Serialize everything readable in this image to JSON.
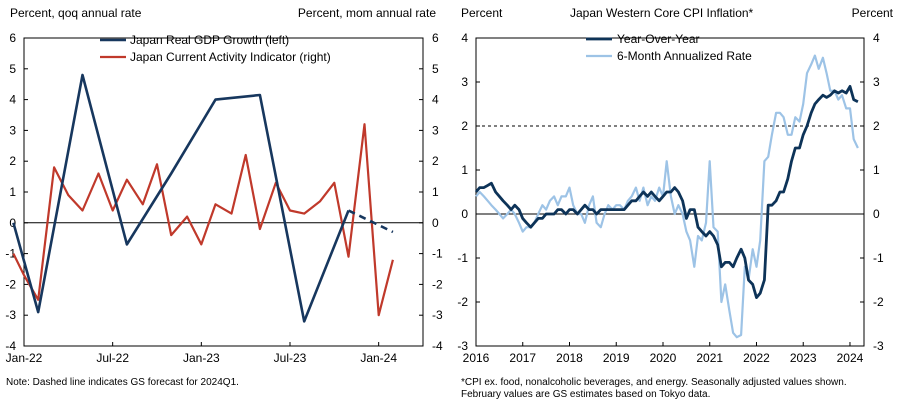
{
  "chart_data": [
    {
      "type": "line",
      "title": "",
      "ylabel_left": "Percent, qoq annual rate",
      "ylabel_right": "Percent, mom annual rate",
      "ylim": [
        -4,
        6
      ],
      "yticks": [
        -4,
        -3,
        -2,
        -1,
        0,
        1,
        2,
        3,
        4,
        5,
        6
      ],
      "xlim": [
        2022.0,
        2024.25
      ],
      "xtick_labels": [
        {
          "label": "Jan-22",
          "x": 2022.0
        },
        {
          "label": "Jul-22",
          "x": 2022.5
        },
        {
          "label": "Jan-23",
          "x": 2023.0
        },
        {
          "label": "Jul-23",
          "x": 2023.5
        },
        {
          "label": "Jan-24",
          "x": 2024.0
        }
      ],
      "note": "Note: Dashed line indicates GS forecast for 2024Q1.",
      "series": [
        {
          "name": "Japan Real GDP Growth (left)",
          "color": "#17375e",
          "points": [
            [
              2021.92,
              0.0
            ],
            [
              2022.08,
              -2.9
            ],
            [
              2022.33,
              4.8
            ],
            [
              2022.58,
              -0.7
            ],
            [
              2022.83,
              1.6
            ],
            [
              2023.08,
              4.0
            ],
            [
              2023.33,
              4.15
            ],
            [
              2023.58,
              -3.2
            ],
            [
              2023.83,
              0.4
            ]
          ],
          "forecast": [
            [
              2023.83,
              0.4
            ],
            [
              2024.08,
              -0.3
            ]
          ]
        },
        {
          "name": "Japan Current Activity Indicator (right)",
          "color": "#c0392b",
          "points": [
            [
              2021.92,
              -1.0
            ],
            [
              2022.0,
              -1.7
            ],
            [
              2022.08,
              -2.5
            ],
            [
              2022.17,
              1.8
            ],
            [
              2022.25,
              0.9
            ],
            [
              2022.33,
              0.4
            ],
            [
              2022.42,
              1.6
            ],
            [
              2022.5,
              0.4
            ],
            [
              2022.58,
              1.4
            ],
            [
              2022.67,
              0.6
            ],
            [
              2022.75,
              1.9
            ],
            [
              2022.83,
              -0.4
            ],
            [
              2022.92,
              0.2
            ],
            [
              2023.0,
              -0.7
            ],
            [
              2023.08,
              0.6
            ],
            [
              2023.17,
              0.3
            ],
            [
              2023.25,
              2.2
            ],
            [
              2023.33,
              -0.2
            ],
            [
              2023.42,
              1.3
            ],
            [
              2023.5,
              0.4
            ],
            [
              2023.58,
              0.3
            ],
            [
              2023.67,
              0.7
            ],
            [
              2023.75,
              1.3
            ],
            [
              2023.83,
              -1.1
            ],
            [
              2023.92,
              3.2
            ],
            [
              2024.0,
              -3.0
            ],
            [
              2024.08,
              -1.2
            ]
          ]
        }
      ]
    },
    {
      "type": "line",
      "title": "Japan  Western Core  CPI Inflation*",
      "ylabel_left": "Percent",
      "ylabel_right": "Percent",
      "ylim": [
        -3,
        4
      ],
      "yticks": [
        -3,
        -2,
        -1,
        0,
        1,
        2,
        3,
        4
      ],
      "xlim": [
        2016.0,
        2024.3
      ],
      "xtick_labels": [
        {
          "label": "2016",
          "x": 2016.0
        },
        {
          "label": "2017",
          "x": 2017.0
        },
        {
          "label": "2018",
          "x": 2018.0
        },
        {
          "label": "2019",
          "x": 2019.0
        },
        {
          "label": "2020",
          "x": 2020.0
        },
        {
          "label": "2021",
          "x": 2021.0
        },
        {
          "label": "2022",
          "x": 2022.0
        },
        {
          "label": "2023",
          "x": 2023.0
        },
        {
          "label": "2024",
          "x": 2024.0
        }
      ],
      "reference_line": {
        "value": 2,
        "style": "dashed"
      },
      "note": "*CPI  ex. food, nonalcoholic beverages, and energy. Seasonally adjusted values shown. February values are GS estimates based on Tokyo data.",
      "series": [
        {
          "name": "Year-Over-Year",
          "color": "#0d3358",
          "points": [
            [
              2016.0,
              0.5
            ],
            [
              2016.08,
              0.6
            ],
            [
              2016.17,
              0.6
            ],
            [
              2016.25,
              0.65
            ],
            [
              2016.33,
              0.7
            ],
            [
              2016.42,
              0.5
            ],
            [
              2016.5,
              0.4
            ],
            [
              2016.58,
              0.3
            ],
            [
              2016.67,
              0.2
            ],
            [
              2016.75,
              0.1
            ],
            [
              2016.83,
              0.2
            ],
            [
              2016.92,
              0.1
            ],
            [
              2017.0,
              -0.1
            ],
            [
              2017.08,
              -0.2
            ],
            [
              2017.17,
              -0.3
            ],
            [
              2017.25,
              -0.2
            ],
            [
              2017.33,
              -0.1
            ],
            [
              2017.42,
              -0.1
            ],
            [
              2017.5,
              0.0
            ],
            [
              2017.58,
              0.0
            ],
            [
              2017.67,
              0.0
            ],
            [
              2017.75,
              0.1
            ],
            [
              2017.83,
              0.1
            ],
            [
              2017.92,
              0.0
            ],
            [
              2018.0,
              0.1
            ],
            [
              2018.08,
              0.1
            ],
            [
              2018.17,
              0.0
            ],
            [
              2018.25,
              0.1
            ],
            [
              2018.33,
              0.2
            ],
            [
              2018.42,
              0.1
            ],
            [
              2018.5,
              0.1
            ],
            [
              2018.58,
              0.0
            ],
            [
              2018.67,
              0.1
            ],
            [
              2018.75,
              0.1
            ],
            [
              2018.83,
              0.1
            ],
            [
              2018.92,
              0.1
            ],
            [
              2019.0,
              0.1
            ],
            [
              2019.08,
              0.1
            ],
            [
              2019.17,
              0.1
            ],
            [
              2019.25,
              0.2
            ],
            [
              2019.33,
              0.3
            ],
            [
              2019.42,
              0.3
            ],
            [
              2019.5,
              0.4
            ],
            [
              2019.58,
              0.5
            ],
            [
              2019.67,
              0.4
            ],
            [
              2019.75,
              0.5
            ],
            [
              2019.83,
              0.4
            ],
            [
              2019.92,
              0.3
            ],
            [
              2020.0,
              0.4
            ],
            [
              2020.08,
              0.5
            ],
            [
              2020.17,
              0.5
            ],
            [
              2020.25,
              0.6
            ],
            [
              2020.33,
              0.5
            ],
            [
              2020.42,
              0.3
            ],
            [
              2020.5,
              -0.1
            ],
            [
              2020.58,
              0.1
            ],
            [
              2020.67,
              0.1
            ],
            [
              2020.75,
              -0.3
            ],
            [
              2020.83,
              -0.4
            ],
            [
              2020.92,
              -0.5
            ],
            [
              2021.0,
              -0.4
            ],
            [
              2021.08,
              -0.5
            ],
            [
              2021.17,
              -0.7
            ],
            [
              2021.25,
              -1.2
            ],
            [
              2021.33,
              -1.1
            ],
            [
              2021.42,
              -1.1
            ],
            [
              2021.5,
              -1.2
            ],
            [
              2021.58,
              -1.0
            ],
            [
              2021.67,
              -0.8
            ],
            [
              2021.75,
              -1.0
            ],
            [
              2021.83,
              -1.5
            ],
            [
              2021.92,
              -1.6
            ],
            [
              2022.0,
              -1.9
            ],
            [
              2022.08,
              -1.8
            ],
            [
              2022.17,
              -1.5
            ],
            [
              2022.25,
              0.2
            ],
            [
              2022.33,
              0.2
            ],
            [
              2022.42,
              0.3
            ],
            [
              2022.5,
              0.5
            ],
            [
              2022.58,
              0.5
            ],
            [
              2022.67,
              0.8
            ],
            [
              2022.75,
              1.2
            ],
            [
              2022.83,
              1.5
            ],
            [
              2022.92,
              1.5
            ],
            [
              2023.0,
              1.8
            ],
            [
              2023.08,
              2.0
            ],
            [
              2023.17,
              2.3
            ],
            [
              2023.25,
              2.5
            ],
            [
              2023.33,
              2.6
            ],
            [
              2023.42,
              2.7
            ],
            [
              2023.5,
              2.65
            ],
            [
              2023.58,
              2.7
            ],
            [
              2023.67,
              2.8
            ],
            [
              2023.75,
              2.75
            ],
            [
              2023.83,
              2.8
            ],
            [
              2023.92,
              2.75
            ],
            [
              2024.0,
              2.9
            ],
            [
              2024.08,
              2.6
            ],
            [
              2024.17,
              2.55
            ]
          ]
        },
        {
          "name": "6-Month Annualized Rate",
          "color": "#9dc3e6",
          "points": [
            [
              2016.0,
              0.4
            ],
            [
              2016.08,
              0.5
            ],
            [
              2016.17,
              0.4
            ],
            [
              2016.25,
              0.3
            ],
            [
              2016.33,
              0.2
            ],
            [
              2016.42,
              0.1
            ],
            [
              2016.5,
              0.0
            ],
            [
              2016.58,
              -0.1
            ],
            [
              2016.67,
              0.0
            ],
            [
              2016.75,
              0.1
            ],
            [
              2016.83,
              0.0
            ],
            [
              2016.92,
              -0.2
            ],
            [
              2017.0,
              -0.4
            ],
            [
              2017.08,
              -0.3
            ],
            [
              2017.17,
              -0.3
            ],
            [
              2017.25,
              -0.2
            ],
            [
              2017.33,
              0.0
            ],
            [
              2017.42,
              0.2
            ],
            [
              2017.5,
              0.1
            ],
            [
              2017.58,
              0.3
            ],
            [
              2017.67,
              0.4
            ],
            [
              2017.75,
              0.2
            ],
            [
              2017.83,
              0.4
            ],
            [
              2017.92,
              0.4
            ],
            [
              2018.0,
              0.6
            ],
            [
              2018.08,
              0.2
            ],
            [
              2018.17,
              0.0
            ],
            [
              2018.25,
              0.0
            ],
            [
              2018.33,
              -0.2
            ],
            [
              2018.42,
              0.2
            ],
            [
              2018.5,
              0.4
            ],
            [
              2018.58,
              -0.2
            ],
            [
              2018.67,
              -0.3
            ],
            [
              2018.75,
              0.0
            ],
            [
              2018.83,
              0.2
            ],
            [
              2018.92,
              0.1
            ],
            [
              2019.0,
              0.2
            ],
            [
              2019.08,
              0.2
            ],
            [
              2019.17,
              0.1
            ],
            [
              2019.25,
              0.3
            ],
            [
              2019.33,
              0.4
            ],
            [
              2019.42,
              0.6
            ],
            [
              2019.5,
              0.3
            ],
            [
              2019.58,
              0.6
            ],
            [
              2019.67,
              0.2
            ],
            [
              2019.75,
              0.4
            ],
            [
              2019.83,
              0.3
            ],
            [
              2019.92,
              0.6
            ],
            [
              2020.0,
              0.4
            ],
            [
              2020.08,
              1.2
            ],
            [
              2020.17,
              0.4
            ],
            [
              2020.25,
              0.0
            ],
            [
              2020.33,
              0.2
            ],
            [
              2020.42,
              0.0
            ],
            [
              2020.5,
              -0.4
            ],
            [
              2020.58,
              -0.6
            ],
            [
              2020.67,
              -1.2
            ],
            [
              2020.75,
              -0.5
            ],
            [
              2020.83,
              -0.6
            ],
            [
              2020.92,
              -0.2
            ],
            [
              2021.0,
              1.2
            ],
            [
              2021.08,
              -0.3
            ],
            [
              2021.17,
              -0.4
            ],
            [
              2021.25,
              -2.0
            ],
            [
              2021.33,
              -1.6
            ],
            [
              2021.42,
              -2.2
            ],
            [
              2021.5,
              -2.7
            ],
            [
              2021.58,
              -2.8
            ],
            [
              2021.67,
              -2.75
            ],
            [
              2021.75,
              -1.2
            ],
            [
              2021.83,
              -1.5
            ],
            [
              2021.92,
              -0.8
            ],
            [
              2022.0,
              -1.2
            ],
            [
              2022.08,
              -0.6
            ],
            [
              2022.17,
              1.2
            ],
            [
              2022.25,
              1.3
            ],
            [
              2022.33,
              1.8
            ],
            [
              2022.42,
              2.3
            ],
            [
              2022.5,
              2.3
            ],
            [
              2022.58,
              2.2
            ],
            [
              2022.67,
              1.8
            ],
            [
              2022.75,
              1.8
            ],
            [
              2022.83,
              2.2
            ],
            [
              2022.92,
              2.1
            ],
            [
              2023.0,
              2.5
            ],
            [
              2023.08,
              3.2
            ],
            [
              2023.17,
              3.4
            ],
            [
              2023.25,
              3.6
            ],
            [
              2023.33,
              3.3
            ],
            [
              2023.42,
              3.55
            ],
            [
              2023.5,
              3.2
            ],
            [
              2023.58,
              2.8
            ],
            [
              2023.67,
              2.8
            ],
            [
              2023.75,
              2.6
            ],
            [
              2023.83,
              2.7
            ],
            [
              2023.92,
              2.4
            ],
            [
              2024.0,
              2.4
            ],
            [
              2024.08,
              1.7
            ],
            [
              2024.17,
              1.5
            ]
          ]
        }
      ]
    }
  ]
}
